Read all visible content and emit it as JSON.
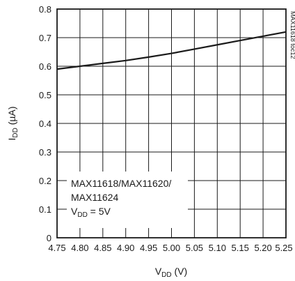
{
  "chart_data": {
    "type": "line",
    "x": [
      4.75,
      4.8,
      4.85,
      4.9,
      4.95,
      5.0,
      5.05,
      5.1,
      5.15,
      5.2,
      5.25
    ],
    "series": [
      {
        "values": [
          0.59,
          0.6,
          0.61,
          0.62,
          0.632,
          0.645,
          0.66,
          0.675,
          0.69,
          0.705,
          0.72
        ]
      }
    ],
    "xlim": [
      4.75,
      5.25
    ],
    "ylim": [
      0,
      0.8
    ],
    "xticks": [
      "4.75",
      "4.80",
      "4.85",
      "4.90",
      "4.95",
      "5.00",
      "5.05",
      "5.10",
      "5.15",
      "5.20",
      "5.25"
    ],
    "yticks": [
      "0",
      "0.1",
      "0.2",
      "0.3",
      "0.4",
      "0.5",
      "0.6",
      "0.7",
      "0.8"
    ],
    "xlabel": {
      "main": "V",
      "sub": "DD",
      "unit": " (V)"
    },
    "ylabel": {
      "main": "I",
      "sub": "DD",
      "unit": " (µA)"
    },
    "annotation": {
      "line1": "MAX11618/MAX11620/",
      "line2": "MAX11624",
      "line3_main": "V",
      "line3_sub": "DD",
      "line3_rest": " = 5V",
      "placement": "bottom-left"
    },
    "side_note": "MAX11618 toc12",
    "grid": true,
    "line_color": "#1a1a1a"
  }
}
